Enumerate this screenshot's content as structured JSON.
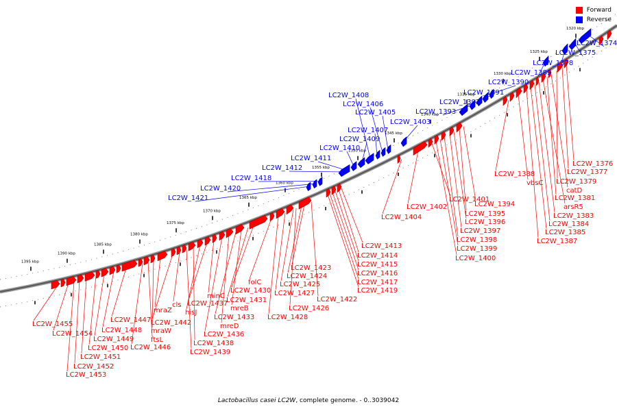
{
  "legend": {
    "forward_label": "Forward",
    "reverse_label": "Reverse",
    "forward_color": "#ff0000",
    "reverse_color": "#0000ff"
  },
  "caption": {
    "organism": "Lactobacillus casei LC2W",
    "rest": ", complete genome. - 0..3039042"
  },
  "scale_labels": [
    "1320 kbp",
    "1325 kbp",
    "1330 kbp",
    "1335 kbp",
    "1340 kbp",
    "1345 kbp",
    "1350 kbp",
    "1355 kbp",
    "1360 kbp",
    "1365 kbp",
    "1370 kbp",
    "1375 kbp",
    "1380 kbp",
    "1385 kbp",
    "1390 kbp",
    "1395 kbp"
  ],
  "reverse_genes": [
    "LC2W_1374",
    "LC2W_1375",
    "LC2W_1378",
    "LC2W_1389",
    "LC2W_1390",
    "LC2W_1391",
    "LC2W_1392",
    "LC2W_1393",
    "LC2W_1403",
    "LC2W_1405",
    "LC2W_1406",
    "LC2W_1407",
    "LC2W_1408",
    "LC2W_1409",
    "LC2W_1410",
    "LC2W_1411",
    "LC2W_1412",
    "LC2W_1418",
    "LC2W_1420",
    "LC2W_1421"
  ],
  "forward_genes": [
    "LC2W_1376",
    "LC2W_1377",
    "LC2W_1379",
    "catD",
    "LC2W_1381",
    "arsR5",
    "LC2W_1383",
    "LC2W_1384",
    "LC2W_1385",
    "LC2W_1387",
    "LC2W_1388",
    "vbsC",
    "LC2W_1394",
    "LC2W_1395",
    "LC2W_1396",
    "LC2W_1397",
    "LC2W_1398",
    "LC2W_1399",
    "LC2W_1400",
    "LC2W_1401",
    "LC2W_1402",
    "LC2W_1404",
    "LC2W_1413",
    "LC2W_1414",
    "LC2W_1415",
    "LC2W_1416",
    "LC2W_1417",
    "LC2W_1419",
    "LC2W_1422",
    "LC2W_1423",
    "LC2W_1424",
    "LC2W_1425",
    "LC2W_1426",
    "LC2W_1427",
    "LC2W_1428",
    "folC",
    "LC2W_1430",
    "LC2W_1431",
    "mreB",
    "LC2W_1433",
    "mreD",
    "LC2W_1436",
    "minC",
    "LC2W_1437",
    "hisJ",
    "LC2W_1438",
    "LC2W_1439",
    "cls",
    "LC2W_1442",
    "mraZ",
    "mraW",
    "ftsL",
    "LC2W_1446",
    "LC2W_1447",
    "LC2W_1448",
    "LC2W_1449",
    "LC2W_1450",
    "LC2W_1451",
    "LC2W_1452",
    "LC2W_1453",
    "LC2W_1454",
    "LC2W_1455"
  ]
}
